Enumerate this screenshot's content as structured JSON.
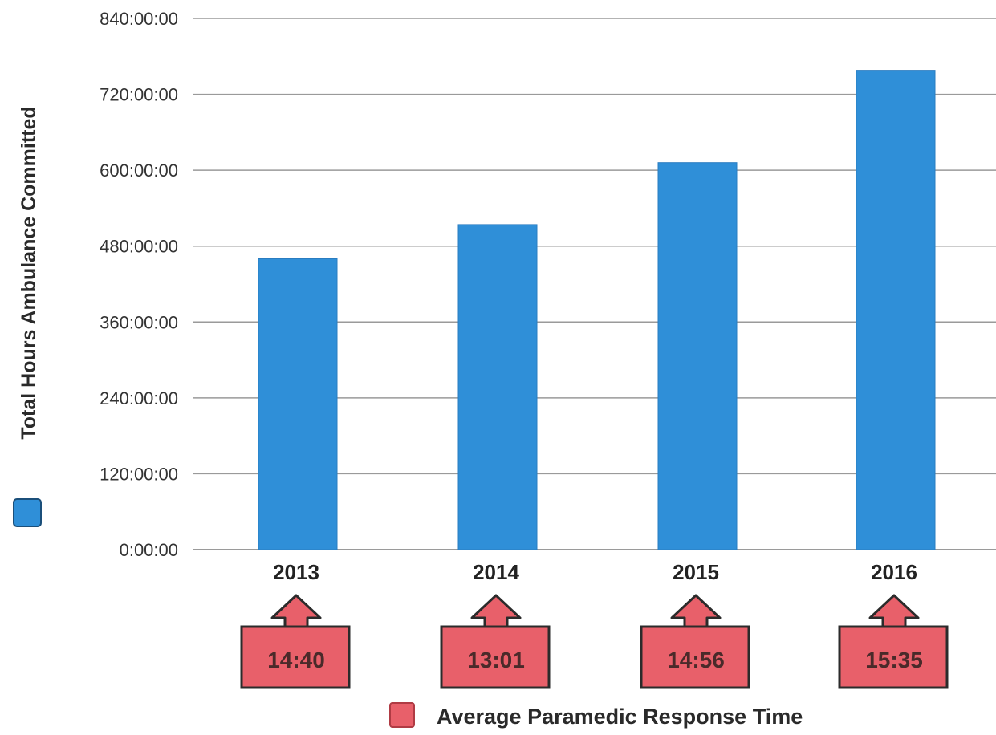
{
  "chart_data": {
    "type": "bar",
    "categories": [
      "2013",
      "2014",
      "2015",
      "2016"
    ],
    "series": [
      {
        "name": "Total Hours Ambulance Committed",
        "values_hours": [
          460,
          514,
          612,
          758
        ],
        "color": "#2f8fd8"
      }
    ],
    "ylabel": "Total Hours Ambulance Committed",
    "ylim_hours": [
      0,
      840
    ],
    "yticks": [
      {
        "value": 0,
        "label": "0:00:00"
      },
      {
        "value": 120,
        "label": "120:00:00"
      },
      {
        "value": 240,
        "label": "240:00:00"
      },
      {
        "value": 360,
        "label": "360:00:00"
      },
      {
        "value": 480,
        "label": "480:00:00"
      },
      {
        "value": 600,
        "label": "600:00:00"
      },
      {
        "value": 720,
        "label": "720:00:00"
      },
      {
        "value": 840,
        "label": "840:00:00"
      }
    ],
    "grid": true,
    "response_times": {
      "name": "Average Paramedic Response Time",
      "values": [
        "14:40",
        "13:01",
        "14:56",
        "15:35"
      ],
      "color": "#e8606a"
    },
    "legend": {
      "bars": {
        "label": "Total Hours Ambulance Committed",
        "color": "#2f8fd8"
      },
      "response": {
        "label": "Average Paramedic Response Time",
        "color": "#e8606a"
      }
    }
  }
}
